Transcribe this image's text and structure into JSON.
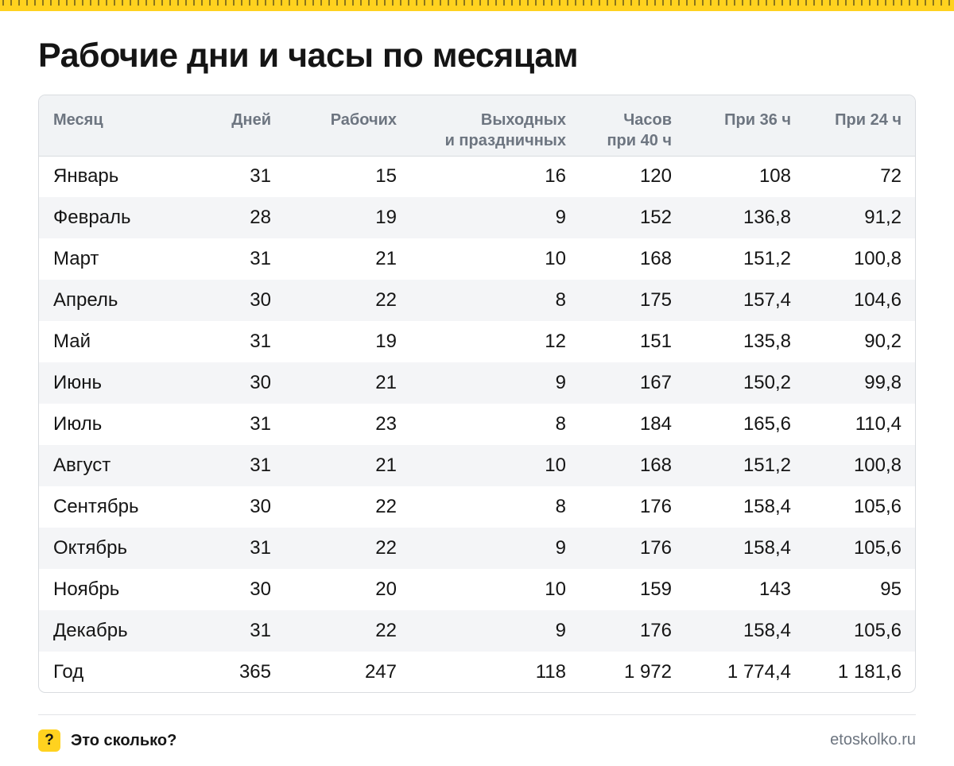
{
  "header": {
    "title": "Рабочие дни и часы по месяцам",
    "accent_color": "#ffd21f"
  },
  "table": {
    "columns": [
      {
        "line1": "Месяц",
        "line2": ""
      },
      {
        "line1": "Дней",
        "line2": ""
      },
      {
        "line1": "Рабочих",
        "line2": ""
      },
      {
        "line1": "Выходных",
        "line2": "и праздничных"
      },
      {
        "line1": "Часов",
        "line2": "при 40 ч"
      },
      {
        "line1": "При 36 ч",
        "line2": ""
      },
      {
        "line1": "При 24 ч",
        "line2": ""
      }
    ],
    "rows": [
      [
        "Январь",
        "31",
        "15",
        "16",
        "120",
        "108",
        "72"
      ],
      [
        "Февраль",
        "28",
        "19",
        "9",
        "152",
        "136,8",
        "91,2"
      ],
      [
        "Март",
        "31",
        "21",
        "10",
        "168",
        "151,2",
        "100,8"
      ],
      [
        "Апрель",
        "30",
        "22",
        "8",
        "175",
        "157,4",
        "104,6"
      ],
      [
        "Май",
        "31",
        "19",
        "12",
        "151",
        "135,8",
        "90,2"
      ],
      [
        "Июнь",
        "30",
        "21",
        "9",
        "167",
        "150,2",
        "99,8"
      ],
      [
        "Июль",
        "31",
        "23",
        "8",
        "184",
        "165,6",
        "110,4"
      ],
      [
        "Август",
        "31",
        "21",
        "10",
        "168",
        "151,2",
        "100,8"
      ],
      [
        "Сентябрь",
        "30",
        "22",
        "8",
        "176",
        "158,4",
        "105,6"
      ],
      [
        "Октябрь",
        "31",
        "22",
        "9",
        "176",
        "158,4",
        "105,6"
      ],
      [
        "Ноябрь",
        "30",
        "20",
        "10",
        "159",
        "143",
        "95"
      ],
      [
        "Декабрь",
        "31",
        "22",
        "9",
        "176",
        "158,4",
        "105,6"
      ],
      [
        "Год",
        "365",
        "247",
        "118",
        "1 972",
        "1 774,4",
        "1 181,6"
      ]
    ]
  },
  "footer": {
    "brand_icon": "?",
    "brand_name": "Это сколько?",
    "site": "etoskolko.ru"
  }
}
